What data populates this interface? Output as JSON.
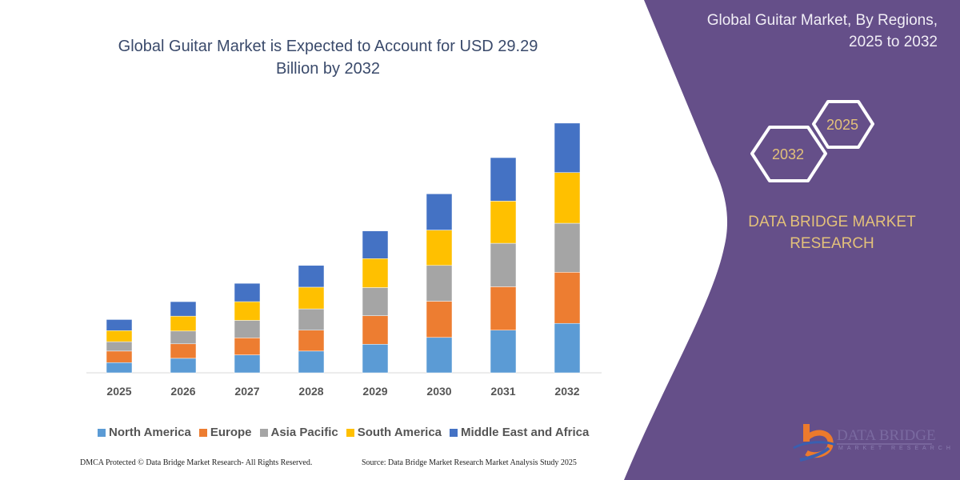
{
  "header": {
    "title": "Global Guitar Market is Expected to Account for USD 29.29 Billion by 2032"
  },
  "side_panel": {
    "title_line1": "Global Guitar Market, By Regions,",
    "title_line2": "2025 to 2032",
    "hex_years": [
      "2032",
      "2025"
    ],
    "brand_line1": "DATA BRIDGE MARKET",
    "brand_line2": "RESEARCH",
    "logo_text": "DATA BRIDGE",
    "logo_subtext": "MARKET RESEARCH",
    "colors": {
      "panel": "#654f89",
      "accent_text": "#e3c17a",
      "logo_orange": "#ec7a2c"
    }
  },
  "footer": {
    "copyright": "DMCA Protected © Data Bridge Market Research-  All Rights Reserved.",
    "source": "Source: Data Bridge Market Research  Market Analysis Study 2025"
  },
  "chart_data": {
    "type": "bar",
    "stacked": true,
    "title": "Global Guitar Market is Expected to Account for USD 29.29 Billion by 2032",
    "xlabel": "",
    "ylabel": "",
    "ylim": [
      0,
      29.29
    ],
    "grid": false,
    "legend_position": "bottom",
    "categories": [
      "2025",
      "2026",
      "2027",
      "2028",
      "2029",
      "2030",
      "2031",
      "2032"
    ],
    "series": [
      {
        "name": "North America",
        "color": "#5b9bd5",
        "values": [
          1.2,
          1.7,
          2.1,
          2.55,
          3.35,
          4.15,
          5.0,
          5.8
        ]
      },
      {
        "name": "Europe",
        "color": "#ed7d31",
        "values": [
          1.35,
          1.7,
          2.0,
          2.45,
          3.35,
          4.25,
          5.1,
          6.0
        ]
      },
      {
        "name": "Asia Pacific",
        "color": "#a5a5a5",
        "values": [
          1.1,
          1.5,
          2.05,
          2.5,
          3.3,
          4.2,
          5.1,
          5.75
        ]
      },
      {
        "name": "South America",
        "color": "#ffc000",
        "values": [
          1.3,
          1.75,
          2.2,
          2.55,
          3.4,
          4.15,
          4.95,
          5.95
        ]
      },
      {
        "name": "Middle East and Africa",
        "color": "#4472c4",
        "values": [
          1.3,
          1.7,
          2.15,
          2.55,
          3.25,
          4.25,
          5.1,
          5.8
        ]
      }
    ]
  }
}
